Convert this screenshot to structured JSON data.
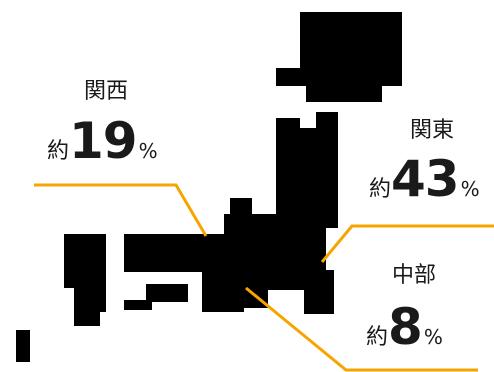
{
  "colors": {
    "land": "#000000",
    "leader": "#f6a500",
    "text": "#1a1a1a"
  },
  "regions": {
    "kansai": {
      "name": "関西",
      "approx": "約",
      "value": "19",
      "unit": "%"
    },
    "kanto": {
      "name": "関東",
      "approx": "約",
      "value": "43",
      "unit": "%"
    },
    "chubu": {
      "name": "中部",
      "approx": "約",
      "value": "8",
      "unit": "%"
    }
  }
}
